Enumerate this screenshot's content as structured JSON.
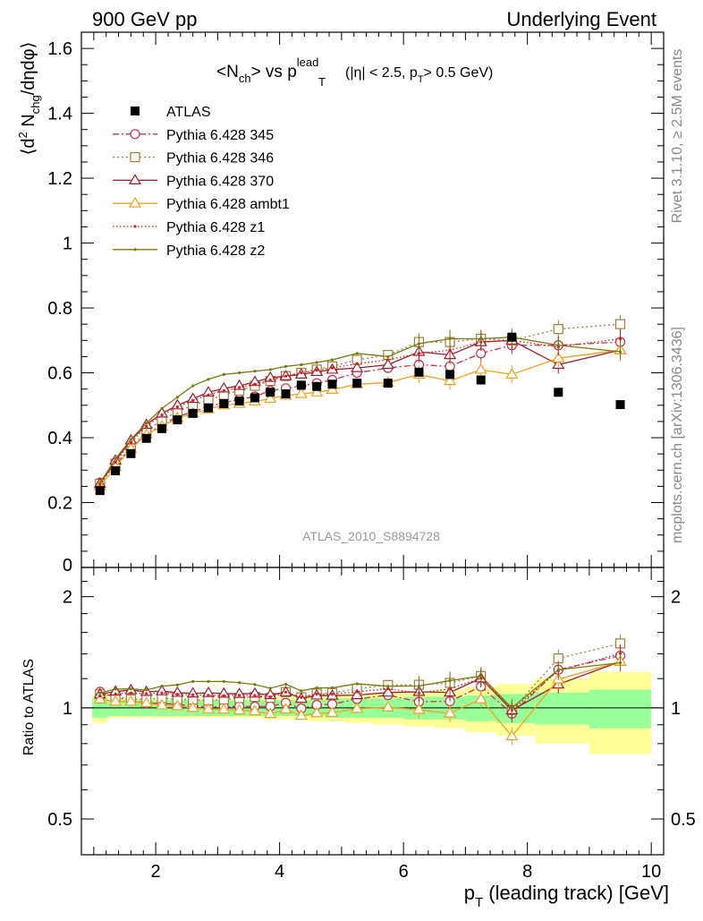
{
  "header": {
    "left": "900 GeV pp",
    "right": "Underlying Event"
  },
  "side_labels": {
    "rivet": "Rivet 3.1.10, ≥ 2.5M events",
    "mcplots": "mcplots.cern.ch [arXiv:1306.3436]"
  },
  "watermark": "ATLAS_2010_S8894728",
  "chart_data": {
    "type": "line",
    "title": "<N_ch> vs p_T^lead (|η| < 2.5, p_T > 0.5 GeV)",
    "title_parts": {
      "open": "<N",
      "sub1": "ch",
      "mid": "> vs p",
      "sup": "lead",
      "sub2": "T",
      "cond": "(|η| < 2.5, p",
      "cond_sub": "T",
      "cond_end": "> 0.5 GeV)"
    },
    "xlabel": "p_T (leading track) [GeV]",
    "xlabel_parts": {
      "p": "p",
      "sub": "T",
      "rest": " (leading track) [GeV]"
    },
    "ylabel": "⟨d² N_chg/dηdφ⟩",
    "ylabel_parts": {
      "a": "⟨d",
      "sup": "2",
      "b": " N",
      "sub": "chg",
      "c": "/dηdφ⟩"
    },
    "ratio_ylabel": "Ratio to ATLAS",
    "xlim": [
      0.8,
      10.2
    ],
    "ylim": [
      0,
      1.65
    ],
    "ratio_ylim": [
      0.4,
      2.4
    ],
    "ratio_scale": "log",
    "x_ticks": [
      "2",
      "4",
      "6",
      "8",
      "10"
    ],
    "y_ticks": [
      "0",
      "0.2",
      "0.4",
      "0.6",
      "0.8",
      "1",
      "1.2",
      "1.4",
      "1.6"
    ],
    "ratio_ticks": [
      "0.5",
      "1",
      "2"
    ],
    "legend_position": "top-left",
    "x": [
      1.1,
      1.35,
      1.6,
      1.85,
      2.1,
      2.35,
      2.6,
      2.85,
      3.1,
      3.35,
      3.6,
      3.85,
      4.1,
      4.35,
      4.6,
      4.85,
      5.25,
      5.75,
      6.25,
      6.75,
      7.25,
      7.75,
      8.5,
      9.5
    ],
    "ATLAS": [
      0.237,
      0.298,
      0.351,
      0.398,
      0.428,
      0.455,
      0.475,
      0.492,
      0.505,
      0.513,
      0.523,
      0.54,
      0.535,
      0.562,
      0.558,
      0.565,
      0.568,
      0.568,
      0.602,
      0.595,
      0.578,
      0.71,
      0.54,
      0.502
    ],
    "atlas_band_inner": [
      0.06,
      0.05,
      0.05,
      0.05,
      0.05,
      0.05,
      0.05,
      0.05,
      0.05,
      0.05,
      0.05,
      0.05,
      0.05,
      0.05,
      0.05,
      0.06,
      0.06,
      0.06,
      0.07,
      0.07,
      0.08,
      0.09,
      0.1,
      0.12
    ],
    "atlas_band_outer": [
      0.09,
      0.06,
      0.06,
      0.06,
      0.06,
      0.06,
      0.06,
      0.06,
      0.06,
      0.06,
      0.06,
      0.07,
      0.07,
      0.07,
      0.08,
      0.08,
      0.09,
      0.1,
      0.11,
      0.12,
      0.14,
      0.16,
      0.2,
      0.25
    ],
    "series": [
      {
        "name": "Pythia 6.428 345",
        "color": "#c0304a",
        "dash": "7,3,2,3",
        "marker": "circle",
        "values": [
          0.262,
          0.318,
          0.368,
          0.41,
          0.44,
          0.465,
          0.48,
          0.495,
          0.508,
          0.518,
          0.527,
          0.545,
          0.552,
          0.56,
          0.568,
          0.578,
          0.6,
          0.615,
          0.625,
          0.62,
          0.66,
          0.685,
          0.685,
          0.695
        ]
      },
      {
        "name": "Pythia 6.428 346",
        "color": "#a07e3a",
        "dash": "2,3",
        "marker": "square",
        "values": [
          0.258,
          0.32,
          0.37,
          0.42,
          0.455,
          0.48,
          0.5,
          0.515,
          0.532,
          0.545,
          0.56,
          0.575,
          0.59,
          0.6,
          0.61,
          0.62,
          0.64,
          0.655,
          0.695,
          0.695,
          0.705,
          0.7,
          0.735,
          0.75
        ]
      },
      {
        "name": "Pythia 6.428 370",
        "color": "#9c1f2e",
        "dash": "",
        "marker": "triangle",
        "values": [
          0.258,
          0.33,
          0.392,
          0.44,
          0.475,
          0.5,
          0.52,
          0.54,
          0.552,
          0.56,
          0.572,
          0.585,
          0.59,
          0.595,
          0.603,
          0.61,
          0.615,
          0.625,
          0.665,
          0.655,
          0.695,
          0.7,
          0.625,
          0.67
        ]
      },
      {
        "name": "Pythia 6.428 ambt1",
        "color": "#f0a020",
        "dash": "",
        "marker": "triangle",
        "values": [
          0.25,
          0.31,
          0.365,
          0.41,
          0.435,
          0.46,
          0.475,
          0.488,
          0.5,
          0.505,
          0.512,
          0.52,
          0.53,
          0.535,
          0.54,
          0.548,
          0.565,
          0.57,
          0.595,
          0.575,
          0.61,
          0.595,
          0.645,
          0.67
        ]
      },
      {
        "name": "Pythia 6.428 z1",
        "color": "#d02020",
        "dash": "1.5,2.5",
        "marker": "dot",
        "values": [
          0.255,
          0.325,
          0.385,
          0.435,
          0.47,
          0.495,
          0.515,
          0.532,
          0.545,
          0.555,
          0.565,
          0.578,
          0.59,
          0.6,
          0.608,
          0.615,
          0.628,
          0.64,
          0.66,
          0.67,
          0.695,
          0.7,
          0.68,
          0.705
        ]
      },
      {
        "name": "Pythia 6.428 z2",
        "color": "#777a10",
        "dash": "",
        "marker": "dot",
        "values": [
          0.26,
          0.335,
          0.395,
          0.445,
          0.49,
          0.525,
          0.56,
          0.58,
          0.595,
          0.6,
          0.605,
          0.61,
          0.62,
          0.625,
          0.632,
          0.64,
          0.66,
          0.65,
          0.69,
          0.705,
          0.705,
          0.71,
          0.685,
          0.665
        ]
      }
    ]
  }
}
